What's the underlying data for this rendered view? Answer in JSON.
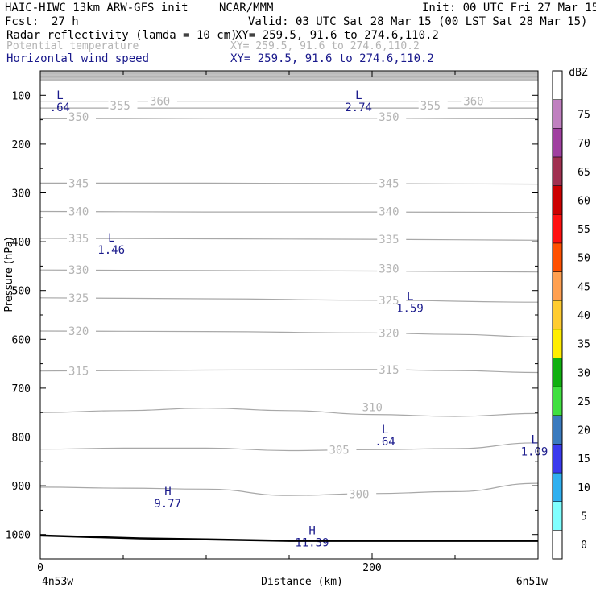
{
  "header": {
    "title_left": "HAIC-HIWC 13km ARW-GFS init",
    "title_center": "NCAR/MMM",
    "init": "Init: 00 UTC Fri 27 Mar 15",
    "fcst_label": "Fcst:",
    "fcst_value": "27 h",
    "valid": "Valid: 03 UTC Sat 28 Mar 15 (00 LST Sat 28 Mar 15)",
    "fields": [
      {
        "name": "Radar reflectivity (lamda = 10 cm)",
        "xy": "XY= 259.5, 91.6 to 274.6,110.2",
        "color": "#000000"
      },
      {
        "name": "Potential temperature",
        "xy": "XY= 259.5, 91.6 to 274.6,110.2",
        "color": "#b4b4b4"
      },
      {
        "name": "Horizontal wind speed",
        "xy": "XY= 259.5, 91.6 to 274.6,110.2",
        "color": "#1a1a8c"
      }
    ]
  },
  "chart_data": {
    "type": "cross-section",
    "xlabel": "Distance (km)",
    "ylabel": "Pressure (hPa)",
    "xlim": [
      0,
      300
    ],
    "ylim": [
      1050,
      50
    ],
    "x_ticks": [
      0,
      200
    ],
    "y_ticks": [
      100,
      200,
      300,
      400,
      500,
      600,
      700,
      800,
      900,
      1000
    ],
    "x_endpoints": [
      "4n53w",
      "6n51w"
    ],
    "theta_contours": [
      {
        "label": "300",
        "points": [
          [
            0,
            903
          ],
          [
            50,
            905
          ],
          [
            100,
            907
          ],
          [
            150,
            920
          ],
          [
            200,
            916
          ],
          [
            250,
            912
          ],
          [
            300,
            895
          ]
        ]
      },
      {
        "label": "305",
        "points": [
          [
            0,
            825
          ],
          [
            50,
            823
          ],
          [
            100,
            823
          ],
          [
            150,
            828
          ],
          [
            200,
            826
          ],
          [
            250,
            824
          ],
          [
            300,
            812
          ]
        ]
      },
      {
        "label": "310",
        "points": [
          [
            0,
            750
          ],
          [
            50,
            746
          ],
          [
            100,
            741
          ],
          [
            150,
            746
          ],
          [
            200,
            754
          ],
          [
            250,
            758
          ],
          [
            300,
            752
          ]
        ]
      },
      {
        "label": "315",
        "points": [
          [
            0,
            665
          ],
          [
            100,
            663
          ],
          [
            200,
            662
          ],
          [
            250,
            664
          ],
          [
            300,
            668
          ]
        ]
      },
      {
        "label": "320",
        "points": [
          [
            0,
            583
          ],
          [
            100,
            584
          ],
          [
            200,
            587
          ],
          [
            250,
            590
          ],
          [
            300,
            595
          ]
        ]
      },
      {
        "label": "325",
        "points": [
          [
            0,
            515
          ],
          [
            100,
            517
          ],
          [
            200,
            520
          ],
          [
            300,
            524
          ]
        ]
      },
      {
        "label": "330",
        "points": [
          [
            0,
            458
          ],
          [
            100,
            459
          ],
          [
            200,
            460
          ],
          [
            300,
            462
          ]
        ]
      },
      {
        "label": "335",
        "points": [
          [
            0,
            393
          ],
          [
            100,
            394
          ],
          [
            200,
            395
          ],
          [
            300,
            397
          ]
        ]
      },
      {
        "label": "340",
        "points": [
          [
            0,
            338
          ],
          [
            100,
            339
          ],
          [
            200,
            339
          ],
          [
            300,
            340
          ]
        ]
      },
      {
        "label": "345",
        "points": [
          [
            0,
            280
          ],
          [
            100,
            280
          ],
          [
            200,
            281
          ],
          [
            300,
            282
          ]
        ]
      },
      {
        "label": "350",
        "points": [
          [
            0,
            148
          ],
          [
            100,
            147
          ],
          [
            200,
            147
          ],
          [
            300,
            148
          ]
        ]
      },
      {
        "label": "355",
        "points": [
          [
            0,
            126
          ],
          [
            100,
            126
          ],
          [
            200,
            126
          ],
          [
            300,
            126
          ]
        ]
      },
      {
        "label": "360",
        "points": [
          [
            0,
            112
          ],
          [
            100,
            112
          ],
          [
            200,
            112
          ],
          [
            300,
            112
          ]
        ]
      }
    ],
    "theta_labels": [
      {
        "text": "350",
        "x": 17,
        "p": 144
      },
      {
        "text": "350",
        "x": 204,
        "p": 144
      },
      {
        "text": "355",
        "x": 42,
        "p": 121
      },
      {
        "text": "355",
        "x": 229,
        "p": 121
      },
      {
        "text": "360",
        "x": 66,
        "p": 112
      },
      {
        "text": "360",
        "x": 255,
        "p": 112
      },
      {
        "text": "345",
        "x": 17,
        "p": 280
      },
      {
        "text": "345",
        "x": 204,
        "p": 280
      },
      {
        "text": "340",
        "x": 17,
        "p": 338
      },
      {
        "text": "340",
        "x": 204,
        "p": 338
      },
      {
        "text": "335",
        "x": 17,
        "p": 393
      },
      {
        "text": "335",
        "x": 204,
        "p": 395
      },
      {
        "text": "330",
        "x": 17,
        "p": 458
      },
      {
        "text": "330",
        "x": 204,
        "p": 455
      },
      {
        "text": "325",
        "x": 17,
        "p": 515
      },
      {
        "text": "325",
        "x": 204,
        "p": 520
      },
      {
        "text": "320",
        "x": 17,
        "p": 583
      },
      {
        "text": "320",
        "x": 204,
        "p": 587
      },
      {
        "text": "315",
        "x": 17,
        "p": 665
      },
      {
        "text": "315",
        "x": 204,
        "p": 662
      },
      {
        "text": "310",
        "x": 194,
        "p": 739
      },
      {
        "text": "305",
        "x": 174,
        "p": 826
      },
      {
        "text": "300",
        "x": 186,
        "p": 917
      }
    ],
    "wind_extrema": [
      {
        "kind": "L",
        "value": ".64",
        "x": 5,
        "p": 88
      },
      {
        "kind": "L",
        "value": "2.74",
        "x": 185,
        "p": 88
      },
      {
        "kind": "L",
        "value": "1.46",
        "x": 36,
        "p": 380
      },
      {
        "kind": "L",
        "value": "1.59",
        "x": 216,
        "p": 500
      },
      {
        "kind": "L",
        "value": ".64",
        "x": 201,
        "p": 773
      },
      {
        "kind": "L",
        "value": "1.09",
        "x": 291,
        "p": 793
      },
      {
        "kind": "H",
        "value": "9.77",
        "x": 70,
        "p": 900
      },
      {
        "kind": "H",
        "value": "11.39",
        "x": 157,
        "p": 980
      }
    ],
    "terrain_surface": [
      [
        0,
        1002
      ],
      [
        30,
        1005
      ],
      [
        60,
        1008
      ],
      [
        100,
        1010
      ],
      [
        150,
        1013
      ],
      [
        300,
        1013
      ]
    ],
    "colorbar": {
      "unit": "dBZ",
      "levels": [
        0,
        5,
        10,
        15,
        20,
        25,
        30,
        35,
        40,
        45,
        50,
        55,
        60,
        65,
        70,
        75
      ],
      "colors": [
        "#ffffff",
        "#80ffff",
        "#30b0f0",
        "#3a3aee",
        "#3a7abe",
        "#40e040",
        "#10b010",
        "#ffee00",
        "#ffcc30",
        "#ffa050",
        "#ff5000",
        "#ff1010",
        "#cc0000",
        "#a03050",
        "#a040a0",
        "#c080c0",
        "#ffffff"
      ]
    }
  }
}
